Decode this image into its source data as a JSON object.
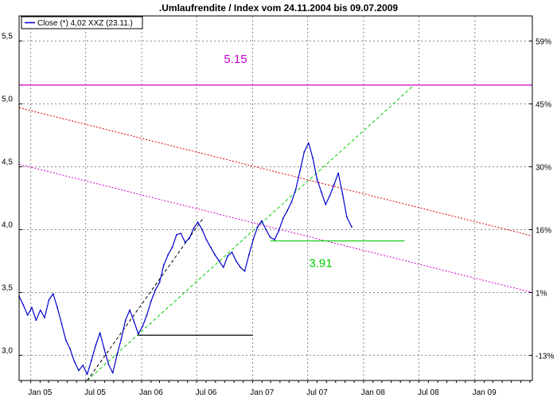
{
  "chart_data": {
    "type": "line",
    "title": ".Umlaufrendite / Index vom 24.11.2004 bis 09.07.2009",
    "legend": {
      "label": "Close (*) 4,02 XXZ (23.11.)",
      "placement": "top-left"
    },
    "x_axis": {
      "tick_labels": [
        "Jan 05",
        "Jul 05",
        "Jan 06",
        "Jul 06",
        "Jan 07",
        "Jul 07",
        "Jan 08",
        "Jul 08",
        "Jan 09"
      ],
      "range": [
        "2004-11-24",
        "2009-07-09"
      ]
    },
    "y_axis_left": {
      "tick_labels": [
        "3,0",
        "3,5",
        "4,0",
        "4,5",
        "5,0",
        "5,5"
      ],
      "tick_values": [
        3.0,
        3.5,
        4.0,
        4.5,
        5.0,
        5.5
      ],
      "range": [
        2.8,
        5.7
      ]
    },
    "y_axis_right": {
      "tick_labels": [
        "-13%",
        "1%",
        "16%",
        "30%",
        "45%",
        "59%"
      ],
      "tick_values": [
        3.0,
        3.5,
        4.0,
        4.5,
        5.0,
        5.5
      ]
    },
    "grid": true,
    "series": [
      {
        "name": "Close (*) 4,02 XXZ (23.11.)",
        "color": "#0000cc",
        "points": [
          [
            "2004-11-24",
            3.47
          ],
          [
            "2004-12-08",
            3.4
          ],
          [
            "2004-12-22",
            3.32
          ],
          [
            "2005-01-05",
            3.38
          ],
          [
            "2005-01-19",
            3.28
          ],
          [
            "2005-02-02",
            3.36
          ],
          [
            "2005-02-16",
            3.3
          ],
          [
            "2005-03-02",
            3.44
          ],
          [
            "2005-03-16",
            3.49
          ],
          [
            "2005-03-30",
            3.38
          ],
          [
            "2005-04-13",
            3.25
          ],
          [
            "2005-04-27",
            3.12
          ],
          [
            "2005-05-11",
            3.05
          ],
          [
            "2005-05-25",
            2.95
          ],
          [
            "2005-06-08",
            2.88
          ],
          [
            "2005-06-22",
            2.92
          ],
          [
            "2005-07-06",
            2.85
          ],
          [
            "2005-07-20",
            2.96
          ],
          [
            "2005-08-03",
            3.08
          ],
          [
            "2005-08-17",
            3.18
          ],
          [
            "2005-08-31",
            3.05
          ],
          [
            "2005-09-14",
            2.93
          ],
          [
            "2005-09-28",
            2.86
          ],
          [
            "2005-10-12",
            3.0
          ],
          [
            "2005-10-26",
            3.13
          ],
          [
            "2005-11-09",
            3.28
          ],
          [
            "2005-11-23",
            3.36
          ],
          [
            "2005-12-07",
            3.27
          ],
          [
            "2005-12-21",
            3.17
          ],
          [
            "2006-01-04",
            3.23
          ],
          [
            "2006-01-18",
            3.32
          ],
          [
            "2006-02-01",
            3.43
          ],
          [
            "2006-02-15",
            3.52
          ],
          [
            "2006-03-01",
            3.58
          ],
          [
            "2006-03-15",
            3.72
          ],
          [
            "2006-03-29",
            3.8
          ],
          [
            "2006-04-12",
            3.86
          ],
          [
            "2006-04-26",
            3.96
          ],
          [
            "2006-05-10",
            3.97
          ],
          [
            "2006-05-24",
            3.9
          ],
          [
            "2006-06-07",
            3.93
          ],
          [
            "2006-06-21",
            4.01
          ],
          [
            "2006-07-05",
            4.06
          ],
          [
            "2006-07-19",
            4.0
          ],
          [
            "2006-08-02",
            3.92
          ],
          [
            "2006-08-16",
            3.86
          ],
          [
            "2006-08-30",
            3.8
          ],
          [
            "2006-09-13",
            3.75
          ],
          [
            "2006-09-27",
            3.7
          ],
          [
            "2006-10-11",
            3.79
          ],
          [
            "2006-10-25",
            3.82
          ],
          [
            "2006-11-08",
            3.75
          ],
          [
            "2006-11-22",
            3.7
          ],
          [
            "2006-12-06",
            3.67
          ],
          [
            "2006-12-20",
            3.8
          ],
          [
            "2007-01-03",
            3.92
          ],
          [
            "2007-01-17",
            4.02
          ],
          [
            "2007-01-31",
            4.07
          ],
          [
            "2007-02-14",
            4.0
          ],
          [
            "2007-02-28",
            3.94
          ],
          [
            "2007-03-14",
            3.92
          ],
          [
            "2007-03-28",
            3.99
          ],
          [
            "2007-04-11",
            4.09
          ],
          [
            "2007-04-25",
            4.15
          ],
          [
            "2007-05-09",
            4.22
          ],
          [
            "2007-05-23",
            4.32
          ],
          [
            "2007-06-06",
            4.47
          ],
          [
            "2007-06-20",
            4.62
          ],
          [
            "2007-07-04",
            4.69
          ],
          [
            "2007-07-18",
            4.57
          ],
          [
            "2007-08-01",
            4.4
          ],
          [
            "2007-08-15",
            4.3
          ],
          [
            "2007-08-29",
            4.2
          ],
          [
            "2007-09-12",
            4.27
          ],
          [
            "2007-09-26",
            4.36
          ],
          [
            "2007-10-10",
            4.45
          ],
          [
            "2007-10-24",
            4.28
          ],
          [
            "2007-11-07",
            4.1
          ],
          [
            "2007-11-23",
            4.02
          ]
        ]
      }
    ],
    "reference_lines": [
      {
        "label": "5.15",
        "value": 5.15,
        "color": "#cc00cc",
        "from": "2004-11-24",
        "to": "2009-07-09"
      },
      {
        "label": "3.91",
        "value": 3.91,
        "color": "#00cc00",
        "from": "2007-03-01",
        "to": "2008-05-15"
      },
      {
        "label": "",
        "value": 3.16,
        "color": "#000000",
        "from": "2005-12-20",
        "to": "2007-01-01"
      }
    ],
    "trend_lines": [
      {
        "color": "#dd0000",
        "style": "dotted",
        "points": [
          [
            "2004-11-24",
            4.97
          ],
          [
            "2009-07-09",
            3.95
          ]
        ]
      },
      {
        "color": "#cc00cc",
        "style": "dotted",
        "points": [
          [
            "2004-11-24",
            4.52
          ],
          [
            "2009-07-09",
            3.5
          ]
        ]
      },
      {
        "color": "#00cc00",
        "style": "dashed",
        "points": [
          [
            "2005-07-06",
            2.8
          ],
          [
            "2008-06-15",
            5.15
          ]
        ]
      },
      {
        "color": "#000000",
        "style": "dashed",
        "points": [
          [
            "2005-07-06",
            2.8
          ],
          [
            "2006-07-25",
            4.1
          ]
        ]
      }
    ]
  }
}
